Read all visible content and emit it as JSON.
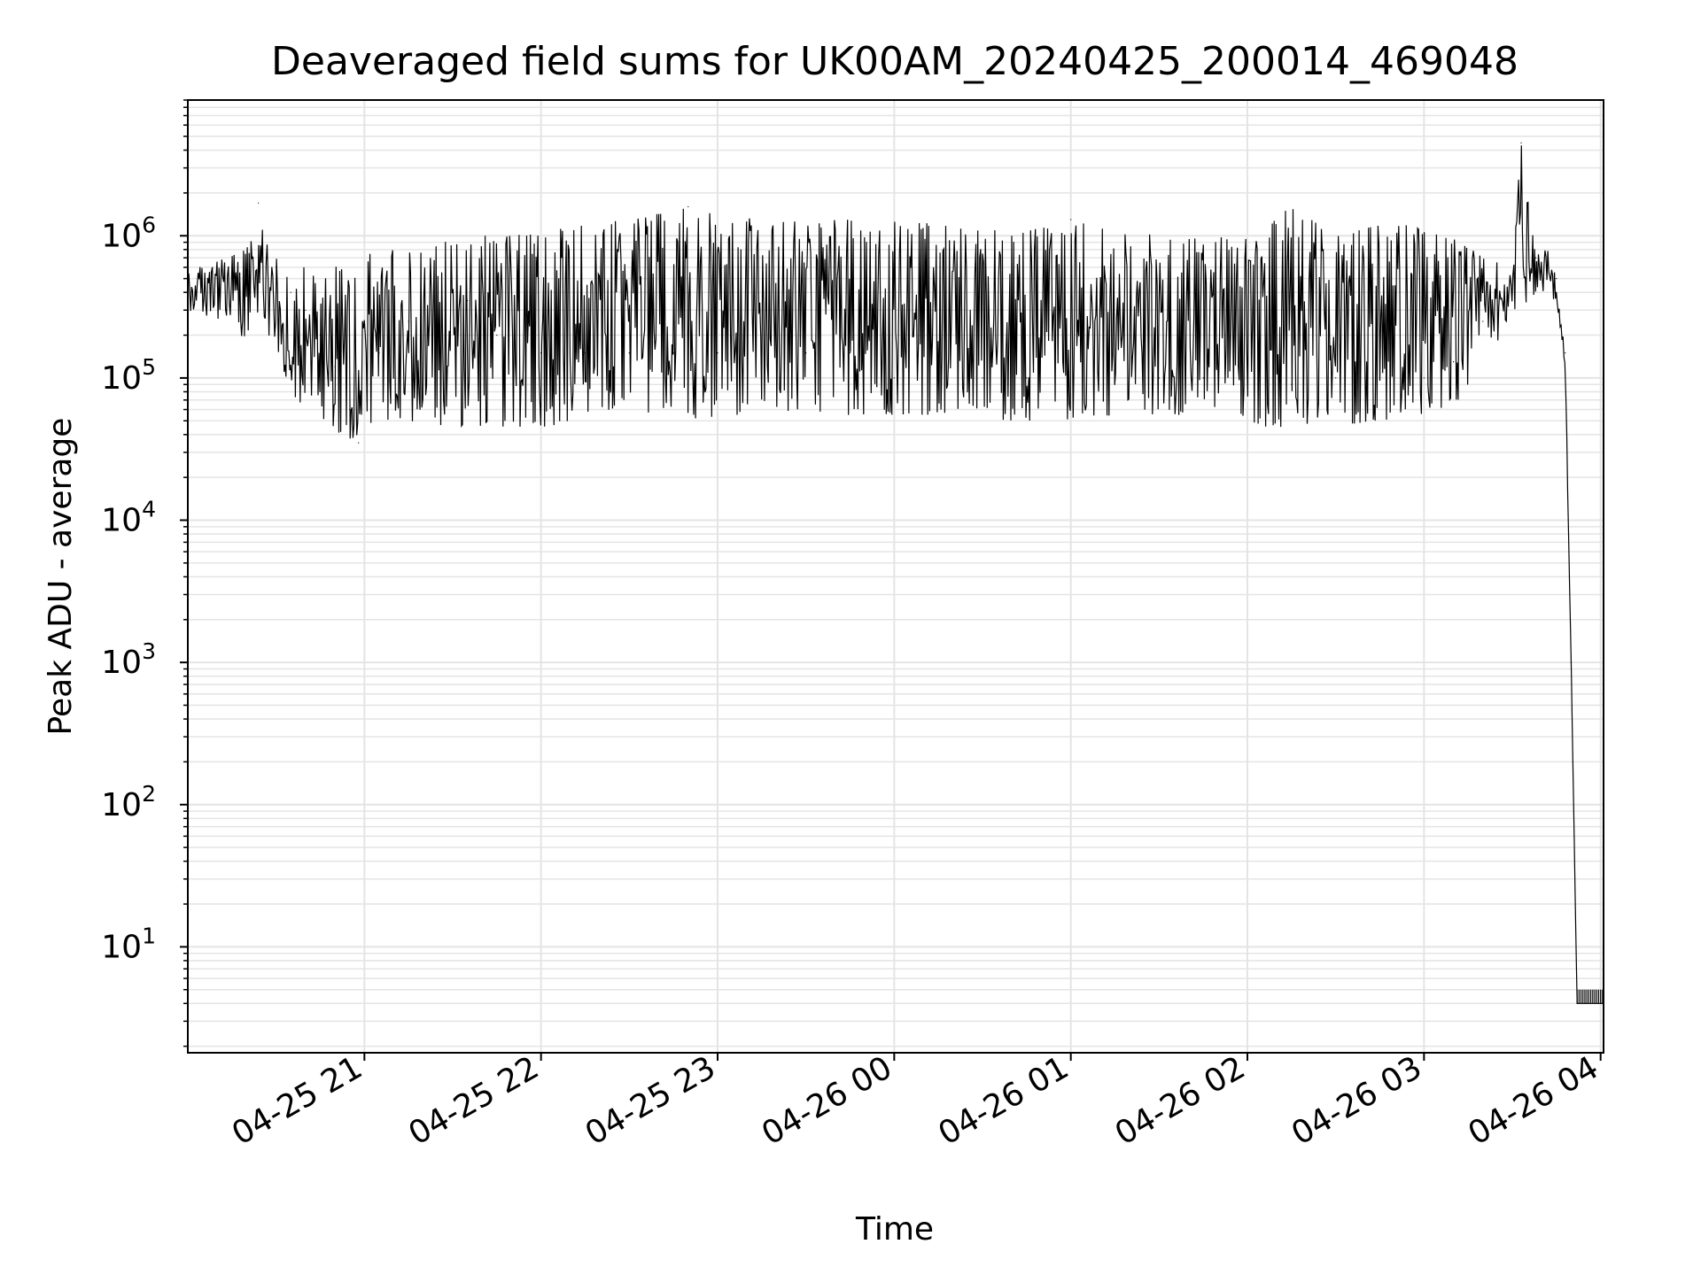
{
  "chart_data": {
    "type": "line",
    "title": "Deaveraged field sums for UK00AM_20240425_200014_469048",
    "xlabel": "Time",
    "ylabel": "Peak ADU - average",
    "yscale": "log",
    "grid": true,
    "legend": "none",
    "xlim": [
      "2024-04-25 20:00",
      "2024-04-26 04:01"
    ],
    "ylim": [
      1.8,
      9000000
    ],
    "x_ticks": [
      "04-25 21",
      "04-25 22",
      "04-25 23",
      "04-26 00",
      "04-26 01",
      "04-26 02",
      "04-26 03",
      "04-26 04"
    ],
    "y_ticks": [
      {
        "base": "10",
        "exp": "1"
      },
      {
        "base": "10",
        "exp": "2"
      },
      {
        "base": "10",
        "exp": "3"
      },
      {
        "base": "10",
        "exp": "4"
      },
      {
        "base": "10",
        "exp": "5"
      },
      {
        "base": "10",
        "exp": "6"
      }
    ],
    "series": [
      {
        "color": "#000000",
        "x": [
          "2024-04-25 20:00",
          "2024-04-25 20:10",
          "2024-04-25 20:20",
          "2024-04-25 20:24",
          "2024-04-25 20:30",
          "2024-04-25 20:35",
          "2024-04-25 20:40",
          "2024-04-25 20:45",
          "2024-04-25 20:50",
          "2024-04-25 20:55",
          "2024-04-25 20:58",
          "2024-04-25 21:05",
          "2024-04-25 21:15",
          "2024-04-25 21:25",
          "2024-04-25 21:35",
          "2024-04-25 21:45",
          "2024-04-25 22:00",
          "2024-04-25 22:15",
          "2024-04-25 22:30",
          "2024-04-25 22:45",
          "2024-04-25 22:50",
          "2024-04-25 23:00",
          "2024-04-25 23:15",
          "2024-04-25 23:30",
          "2024-04-25 23:45",
          "2024-04-26 00:00",
          "2024-04-26 00:15",
          "2024-04-26 00:30",
          "2024-04-26 00:45",
          "2024-04-26 01:00",
          "2024-04-26 01:15",
          "2024-04-26 01:30",
          "2024-04-26 01:45",
          "2024-04-26 02:00",
          "2024-04-26 02:15",
          "2024-04-26 02:30",
          "2024-04-26 02:45",
          "2024-04-26 03:00",
          "2024-04-26 03:10",
          "2024-04-26 03:20",
          "2024-04-26 03:30",
          "2024-04-26 03:33",
          "2024-04-26 03:38",
          "2024-04-26 03:42",
          "2024-04-26 03:45",
          "2024-04-26 03:48",
          "2024-04-26 03:50",
          "2024-04-26 03:52",
          "2024-04-26 03:55",
          "2024-04-26 04:00",
          "2024-04-26 04:01"
        ],
        "y": [
          450000,
          500000,
          550000,
          1700000,
          600000,
          400000,
          300000,
          200000,
          120000,
          60000,
          35000,
          150000,
          250000,
          300000,
          350000,
          200000,
          150000,
          150000,
          150000,
          150000,
          1600000,
          150000,
          150000,
          150000,
          150000,
          100000,
          100000,
          100000,
          100000,
          1300000,
          100000,
          100000,
          100000,
          90000,
          90000,
          100000,
          100000,
          100000,
          130000,
          250000,
          400000,
          4500000,
          700000,
          750000,
          500000,
          150000,
          1000,
          4,
          4,
          4,
          4
        ],
        "lower": [
          300000,
          250000,
          160000,
          300000,
          150000,
          80000,
          60000,
          50000,
          40000,
          35000,
          35000,
          50000,
          50000,
          45000,
          45000,
          45000,
          45000,
          50000,
          55000,
          60000,
          45000,
          55000,
          55000,
          55000,
          55000,
          55000,
          55000,
          50000,
          50000,
          50000,
          55000,
          55000,
          55000,
          45000,
          45000,
          45000,
          50000,
          55000,
          60000,
          120000,
          250000,
          300000,
          400000,
          400000,
          300000,
          100000,
          1000,
          4,
          4,
          4,
          4
        ],
        "upper": [
          600000,
          700000,
          800000,
          1700000,
          700000,
          600000,
          600000,
          550000,
          600000,
          700000,
          700000,
          800000,
          800000,
          900000,
          1000000,
          1000000,
          1100000,
          1200000,
          1300000,
          1500000,
          1600000,
          1400000,
          1300000,
          1300000,
          1300000,
          1300000,
          1200000,
          1100000,
          1100000,
          1300000,
          1100000,
          1000000,
          1000000,
          1000000,
          1600000,
          1000000,
          1200000,
          1200000,
          1000000,
          700000,
          600000,
          4500000,
          800000,
          800000,
          500000,
          150000,
          1000,
          4,
          4,
          4,
          4
        ]
      }
    ]
  }
}
